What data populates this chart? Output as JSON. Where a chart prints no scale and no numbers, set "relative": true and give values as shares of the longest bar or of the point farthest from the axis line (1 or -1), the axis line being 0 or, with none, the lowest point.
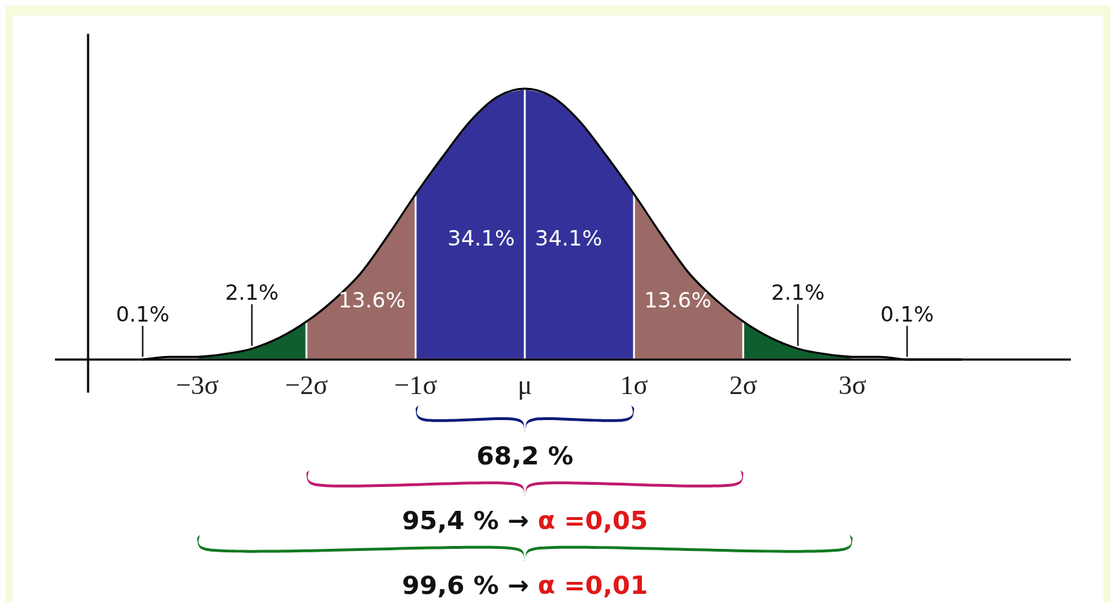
{
  "chart_data": {
    "type": "area",
    "relative": true,
    "grid": false,
    "xlim": [
      -4,
      5
    ],
    "xticks": [
      {
        "value": -3,
        "label": "−3σ"
      },
      {
        "value": -2,
        "label": "−2σ"
      },
      {
        "value": -1,
        "label": "−1σ"
      },
      {
        "value": 0,
        "label": "μ"
      },
      {
        "value": 1,
        "label": "1σ"
      },
      {
        "value": 2,
        "label": "2σ"
      },
      {
        "value": 3,
        "label": "3σ"
      }
    ],
    "series": [
      {
        "color": "#0f5e2e",
        "x": [
          -3,
          -2.75,
          -2.5,
          -2.25,
          -2
        ],
        "values": [
          0.01,
          0.02,
          0.04,
          0.08,
          0.14
        ]
      },
      {
        "color": "#9b6a66",
        "x": [
          -2,
          -1.75,
          -1.5,
          -1.25,
          -1
        ],
        "values": [
          0.14,
          0.22,
          0.32,
          0.46,
          0.61
        ]
      },
      {
        "color": "#34329a",
        "x": [
          -1,
          -0.75,
          -0.5,
          -0.25,
          0
        ],
        "values": [
          0.61,
          0.75,
          0.88,
          0.97,
          1
        ]
      },
      {
        "color": "#34329a",
        "x": [
          0,
          0.25,
          0.5,
          0.75,
          1
        ],
        "values": [
          1,
          0.97,
          0.88,
          0.75,
          0.61
        ]
      },
      {
        "color": "#9b6a66",
        "x": [
          1,
          1.25,
          1.5,
          1.75,
          2
        ],
        "values": [
          0.61,
          0.46,
          0.32,
          0.22,
          0.14
        ]
      },
      {
        "color": "#0f5e2e",
        "x": [
          2,
          2.25,
          2.5,
          2.75,
          3
        ],
        "values": [
          0.14,
          0.08,
          0.04,
          0.02,
          0.01
        ]
      },
      {
        "type": "line",
        "color": "#000000",
        "x": [
          -3.5,
          -3.25,
          -3,
          -2.75,
          -2.5,
          -2.25,
          -2,
          -1.75,
          -1.5,
          -1.25,
          -1,
          -0.75,
          -0.5,
          -0.25,
          0,
          0.25,
          0.5,
          0.75,
          1,
          1.25,
          1.5,
          1.75,
          2,
          2.25,
          2.5,
          2.75,
          3,
          3.25,
          3.5,
          3.75,
          4
        ],
        "values": [
          0,
          0.01,
          0.01,
          0.02,
          0.04,
          0.08,
          0.14,
          0.22,
          0.32,
          0.46,
          0.61,
          0.75,
          0.88,
          0.97,
          1,
          0.97,
          0.88,
          0.75,
          0.61,
          0.46,
          0.32,
          0.22,
          0.14,
          0.08,
          0.04,
          0.02,
          0.01,
          0.01,
          0,
          0,
          0
        ]
      }
    ],
    "annotations": [
      "2.1%",
      "13.6%",
      "34.1%",
      "34.1%",
      "13.6%",
      "2.1%",
      "0.1%",
      "0.1%",
      "68,2 %",
      "95,4 % → α =0,05",
      "99,6 % → α =0,01"
    ]
  }
}
